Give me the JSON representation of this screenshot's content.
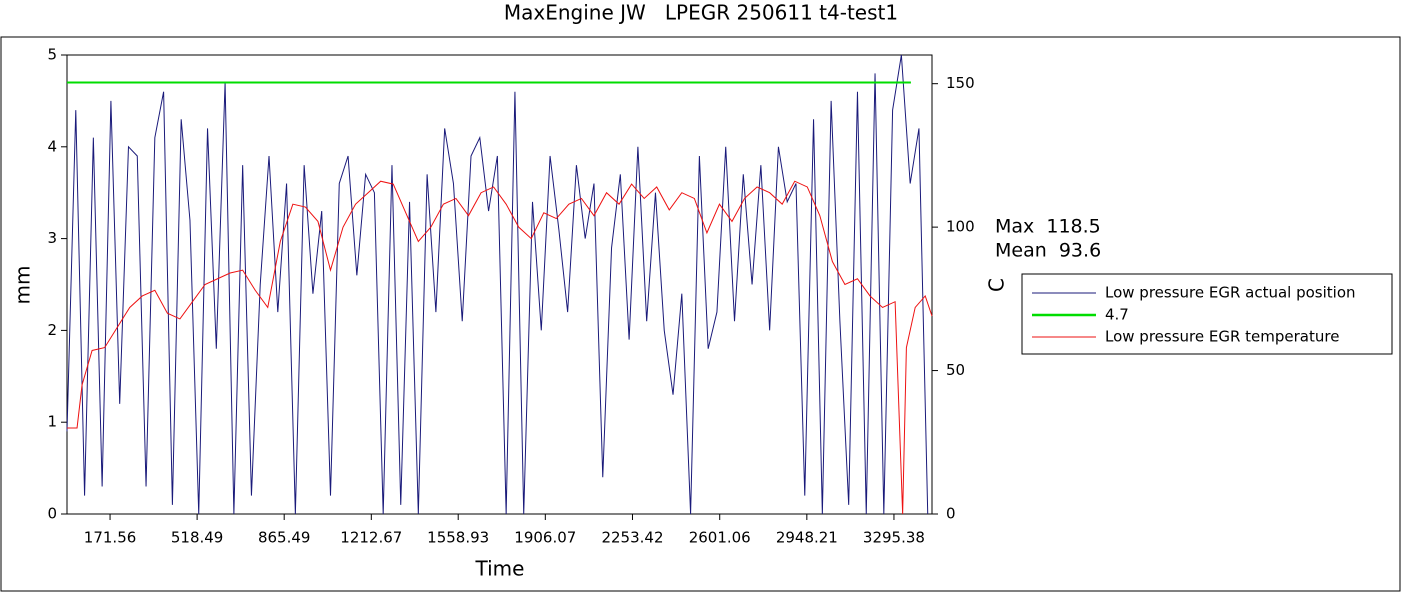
{
  "chart_data": {
    "type": "line",
    "title": "MaxEngine JW   LPEGR 250611 t4-test1",
    "x_label": "Time",
    "y_label": "mm",
    "y2_label": "C",
    "annotations": [
      "Max  118.5",
      "Mean  93.6"
    ],
    "xlim": [
      0,
      3447
    ],
    "xticks": [
      171.56,
      518.49,
      865.49,
      1212.67,
      1558.93,
      1906.07,
      2253.42,
      2601.06,
      2948.21,
      3295.38
    ],
    "ylim": [
      0,
      5
    ],
    "yticks": [
      0,
      1,
      2,
      3,
      4,
      5
    ],
    "y2lim": [
      0,
      160
    ],
    "y2ticks": [
      0,
      50,
      100,
      150
    ],
    "grid": false,
    "series": [
      {
        "name": "Low pressure EGR actual position",
        "color": "#1a1a7a",
        "x": [
          0,
          35,
          70,
          105,
          140,
          175,
          210,
          245,
          280,
          315,
          350,
          385,
          420,
          455,
          490,
          525,
          560,
          595,
          630,
          665,
          700,
          735,
          770,
          805,
          840,
          875,
          910,
          945,
          980,
          1015,
          1050,
          1085,
          1120,
          1155,
          1190,
          1225,
          1260,
          1295,
          1330,
          1365,
          1400,
          1435,
          1470,
          1505,
          1540,
          1575,
          1610,
          1645,
          1680,
          1715,
          1750,
          1785,
          1820,
          1855,
          1890,
          1925,
          1960,
          1995,
          2030,
          2065,
          2100,
          2135,
          2170,
          2205,
          2240,
          2275,
          2310,
          2345,
          2380,
          2415,
          2450,
          2485,
          2520,
          2555,
          2590,
          2625,
          2660,
          2695,
          2730,
          2765,
          2800,
          2835,
          2870,
          2905,
          2940,
          2975,
          3010,
          3045,
          3080,
          3115,
          3150,
          3185,
          3220,
          3255,
          3290,
          3325,
          3360,
          3395,
          3430
        ],
        "values": [
          0.9,
          4.4,
          0.2,
          4.1,
          0.3,
          4.5,
          1.2,
          4.0,
          3.9,
          0.3,
          4.1,
          4.6,
          0.1,
          4.3,
          3.2,
          0.0,
          4.2,
          1.8,
          4.7,
          0.0,
          3.8,
          0.2,
          2.5,
          3.9,
          2.2,
          3.6,
          0.0,
          3.8,
          2.4,
          3.3,
          0.2,
          3.6,
          3.9,
          2.6,
          3.7,
          3.5,
          0.0,
          3.8,
          0.1,
          3.4,
          0.0,
          3.7,
          2.2,
          4.2,
          3.6,
          2.1,
          3.9,
          4.1,
          3.3,
          3.9,
          0.0,
          4.6,
          0.0,
          3.4,
          2.0,
          3.9,
          3.1,
          2.2,
          3.8,
          3.0,
          3.6,
          0.4,
          2.9,
          3.7,
          1.9,
          4.0,
          2.1,
          3.5,
          2.0,
          1.3,
          2.4,
          0.0,
          3.9,
          1.8,
          2.2,
          4.0,
          2.1,
          3.7,
          2.5,
          3.8,
          2.0,
          4.0,
          3.4,
          3.6,
          0.2,
          4.3,
          0.0,
          4.5,
          2.1,
          0.1,
          4.6,
          0.0,
          4.8,
          0.0,
          4.4,
          5.0,
          3.6,
          4.2,
          0.0
        ]
      },
      {
        "name": "4.7",
        "color": "#00dd00",
        "x": [
          0,
          3363
        ],
        "values": [
          4.7,
          4.7
        ]
      },
      {
        "name": "Low pressure EGR temperature",
        "color": "#ee1111",
        "axis": "y2",
        "x": [
          0,
          40,
          60,
          100,
          150,
          200,
          250,
          300,
          350,
          400,
          450,
          500,
          550,
          600,
          650,
          700,
          750,
          800,
          850,
          900,
          950,
          1000,
          1050,
          1100,
          1150,
          1200,
          1250,
          1300,
          1350,
          1400,
          1450,
          1500,
          1550,
          1600,
          1650,
          1700,
          1750,
          1800,
          1850,
          1900,
          1950,
          2000,
          2050,
          2100,
          2150,
          2200,
          2250,
          2300,
          2350,
          2400,
          2450,
          2500,
          2550,
          2600,
          2650,
          2700,
          2750,
          2800,
          2850,
          2900,
          2950,
          3000,
          3050,
          3100,
          3150,
          3200,
          3250,
          3300,
          3330,
          3345,
          3380,
          3420,
          3447
        ],
        "values": [
          30,
          30,
          45,
          57,
          58,
          65,
          72,
          76,
          78,
          70,
          68,
          74,
          80,
          82,
          84,
          85,
          78,
          72,
          95,
          108,
          107,
          102,
          85,
          100,
          108,
          112,
          116,
          115,
          105,
          95,
          100,
          108,
          110,
          104,
          112,
          114,
          108,
          100,
          96,
          105,
          103,
          108,
          110,
          104,
          112,
          108,
          115,
          110,
          114,
          106,
          112,
          110,
          98,
          108,
          102,
          110,
          114,
          112,
          108,
          116,
          114,
          104,
          88,
          80,
          82,
          76,
          72,
          74,
          0,
          58,
          72,
          76,
          69
        ]
      }
    ]
  }
}
